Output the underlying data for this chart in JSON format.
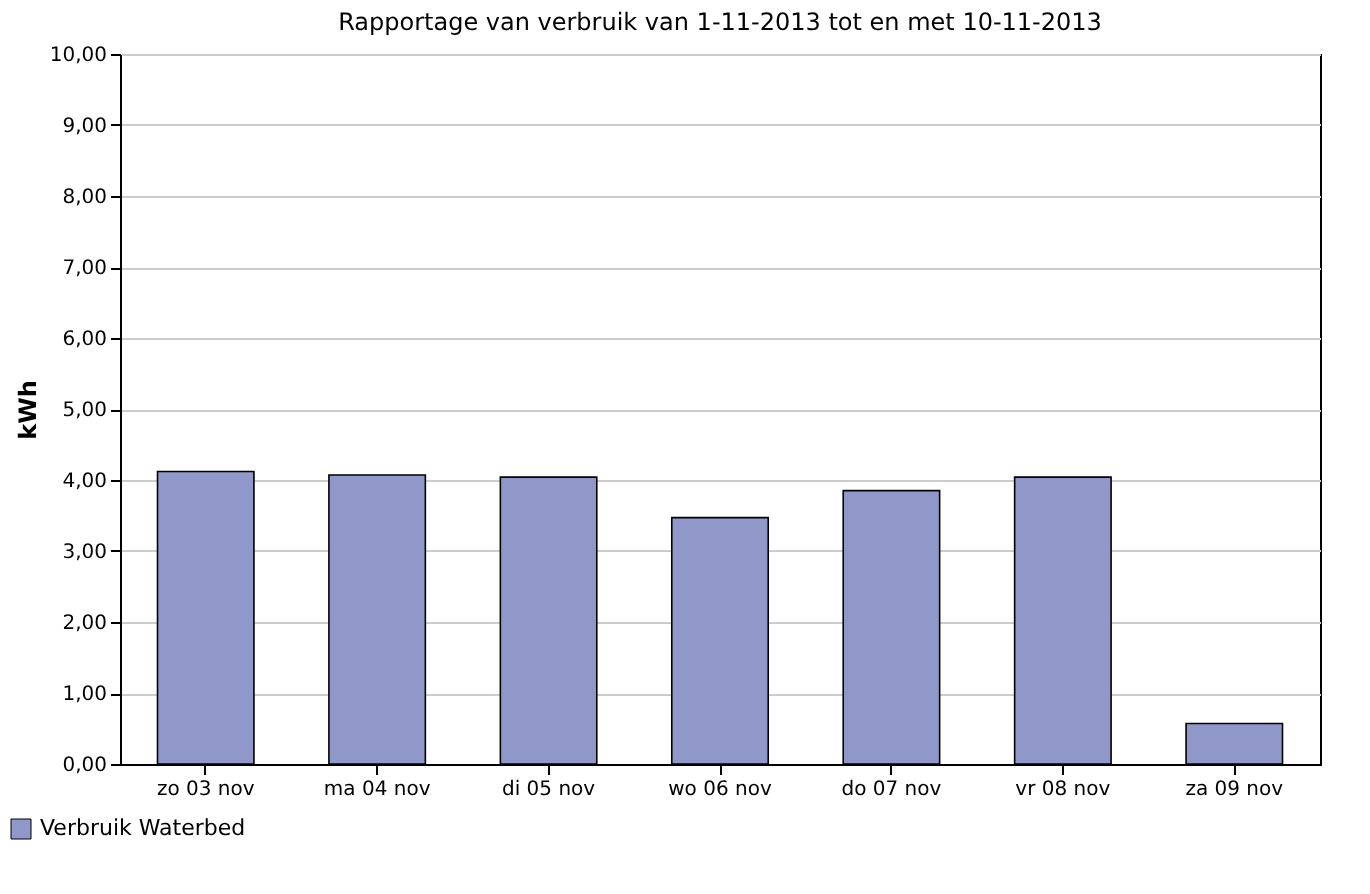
{
  "chart_data": {
    "type": "bar",
    "title": "Rapportage van verbruik van 1-11-2013 tot en met 10-11-2013",
    "ylabel": "kWh",
    "categories": [
      "zo 03 nov",
      "ma 04 nov",
      "di 05 nov",
      "wo 06 nov",
      "do 07 nov",
      "vr 08 nov",
      "za 09 nov"
    ],
    "series": [
      {
        "name": "Verbruik Waterbed",
        "color": "#8f98c8",
        "values": [
          4.12,
          4.07,
          4.04,
          3.47,
          3.85,
          4.04,
          0.57
        ]
      }
    ],
    "ylim": [
      0,
      10
    ],
    "yticks": [
      {
        "value": 0,
        "label": "0,00"
      },
      {
        "value": 1,
        "label": "1,00"
      },
      {
        "value": 2,
        "label": "2,00"
      },
      {
        "value": 3,
        "label": "3,00"
      },
      {
        "value": 4,
        "label": "4,00"
      },
      {
        "value": 5,
        "label": "5,00"
      },
      {
        "value": 6,
        "label": "6,00"
      },
      {
        "value": 7,
        "label": "7,00"
      },
      {
        "value": 8,
        "label": "8,00"
      },
      {
        "value": 9,
        "label": "9,00"
      },
      {
        "value": 10,
        "label": "10,00"
      }
    ],
    "grid": "y",
    "legend": "bottom left"
  }
}
